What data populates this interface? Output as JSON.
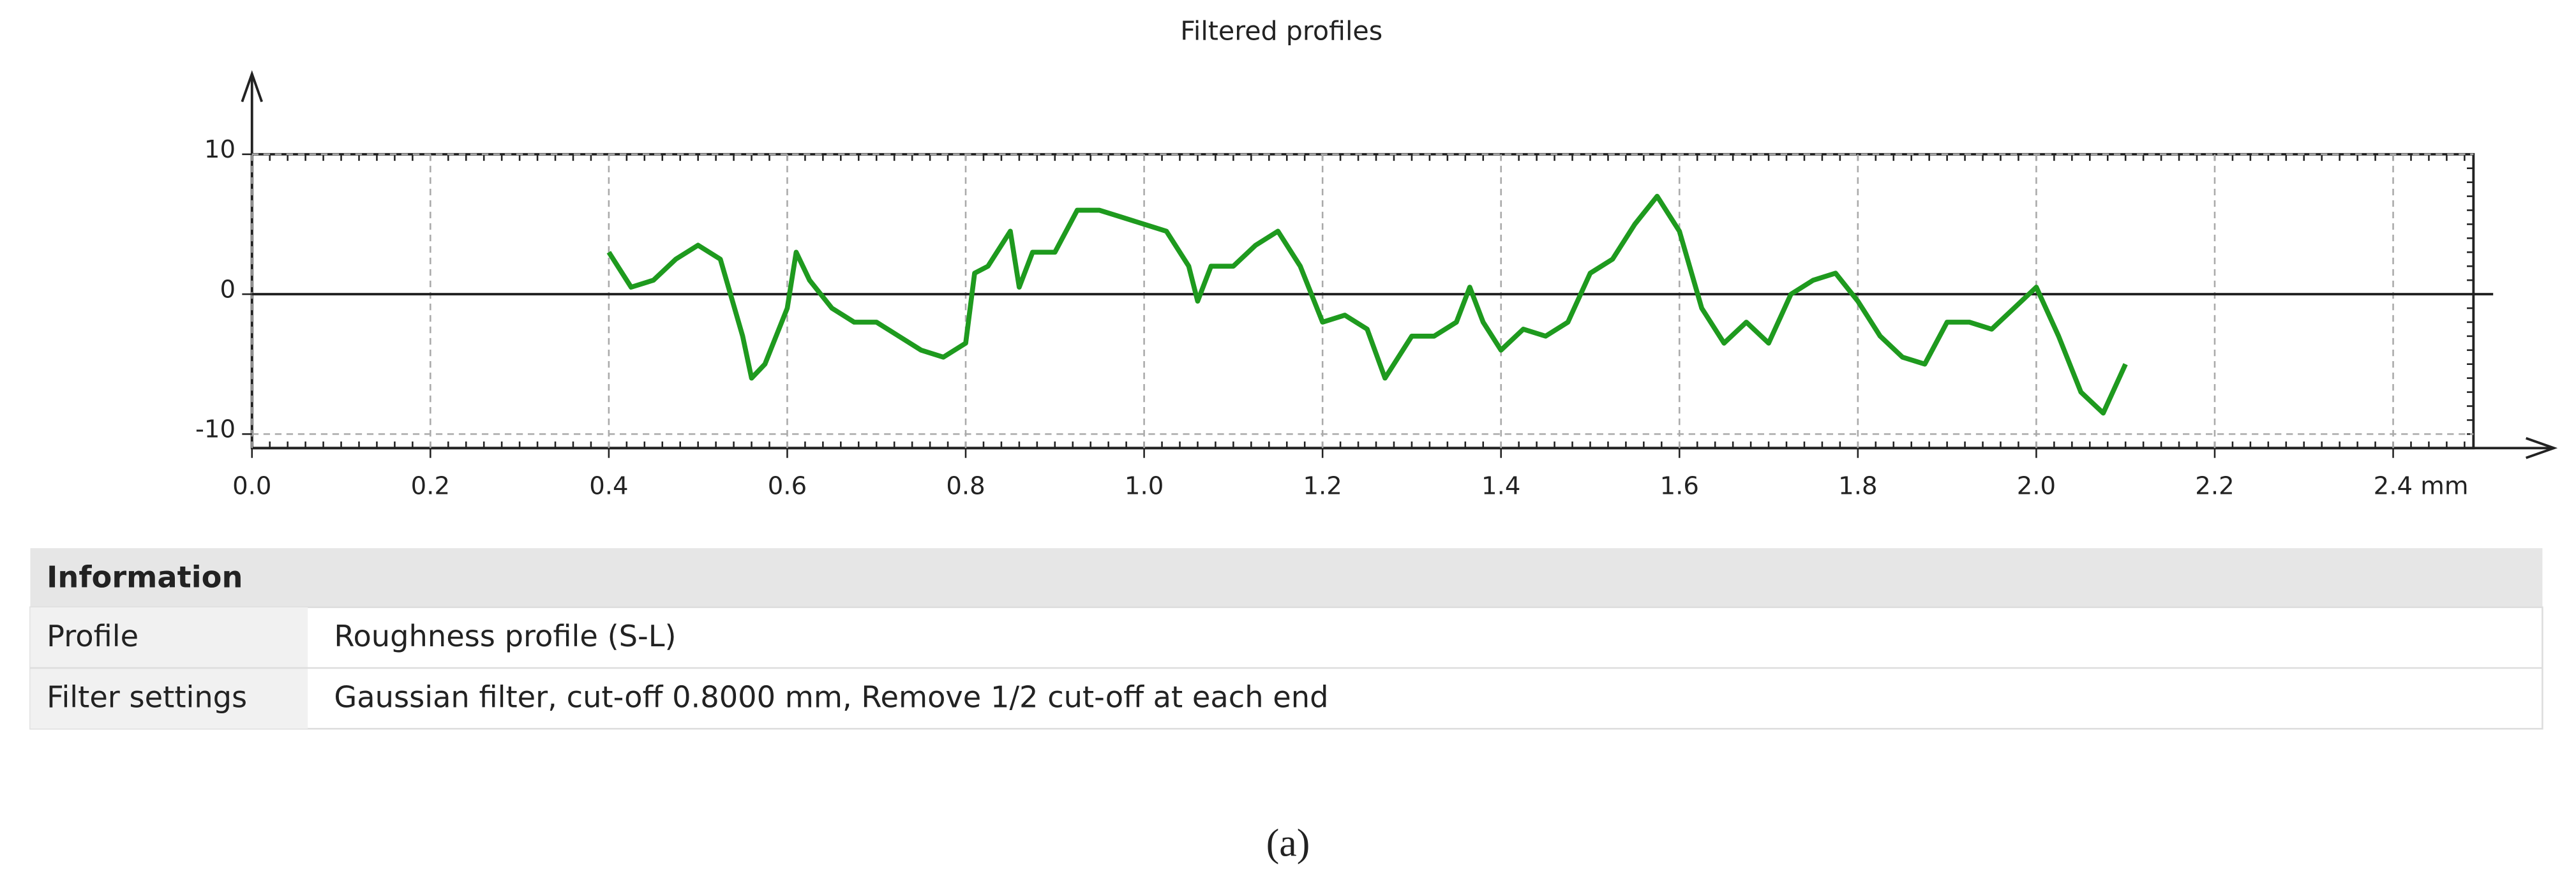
{
  "chart_data": {
    "type": "line",
    "title": "Filtered profiles",
    "x": [
      0.4,
      0.425,
      0.45,
      0.475,
      0.5,
      0.525,
      0.55,
      0.56,
      0.575,
      0.6,
      0.61,
      0.625,
      0.65,
      0.675,
      0.7,
      0.725,
      0.75,
      0.775,
      0.8,
      0.81,
      0.825,
      0.85,
      0.86,
      0.875,
      0.9,
      0.925,
      0.95,
      0.975,
      1.0,
      1.025,
      1.05,
      1.06,
      1.075,
      1.1,
      1.125,
      1.15,
      1.175,
      1.2,
      1.225,
      1.25,
      1.27,
      1.3,
      1.325,
      1.35,
      1.365,
      1.38,
      1.4,
      1.425,
      1.45,
      1.475,
      1.5,
      1.525,
      1.55,
      1.575,
      1.6,
      1.625,
      1.65,
      1.675,
      1.7,
      1.725,
      1.75,
      1.775,
      1.8,
      1.825,
      1.85,
      1.875,
      1.9,
      1.925,
      1.95,
      1.975,
      2.0,
      2.025,
      2.05,
      2.075,
      2.1
    ],
    "series": [
      {
        "color": "#1e9a1e",
        "values": [
          3,
          0.5,
          1,
          2.5,
          3.5,
          2.5,
          -3,
          -6,
          -5,
          -1,
          3,
          1,
          -1,
          -2,
          -2,
          -3,
          -4,
          -4.5,
          -3.5,
          1.5,
          2,
          4.5,
          0.5,
          3,
          3,
          6,
          6,
          5.5,
          5,
          4.5,
          2,
          -0.5,
          2,
          2,
          3.5,
          4.5,
          2,
          -2,
          -1.5,
          -2.5,
          -6,
          -3,
          -3,
          -2,
          0.5,
          -2,
          -4,
          -2.5,
          -3,
          -2,
          1.5,
          2.5,
          5,
          7,
          4.5,
          -1,
          -3.5,
          -2,
          -3.5,
          0,
          1,
          1.5,
          -0.5,
          -3,
          -4.5,
          -5,
          -2,
          -2,
          -2.5,
          -1,
          0.5,
          -3,
          -7,
          -8.5,
          -5
        ]
      }
    ],
    "xlim": [
      0,
      2.49
    ],
    "ylim": [
      -11,
      10
    ],
    "xticks": [
      {
        "value": 0,
        "label": "0.0"
      },
      0.2,
      0.4,
      0.6,
      0.8,
      {
        "value": 1,
        "label": "1.0"
      },
      1.2,
      1.4,
      1.6,
      1.8,
      {
        "value": 2,
        "label": "2.0"
      },
      2.2,
      {
        "value": 2.4,
        "label": "2.4 mm"
      }
    ],
    "yticks": [
      -10,
      0,
      10
    ],
    "grid": true
  },
  "table": {
    "header": "Information",
    "rows": [
      [
        "Profile",
        "Roughness profile (S-L)"
      ],
      [
        "Filter settings",
        "Gaussian filter, cut-off 0.8000 mm, Remove 1/2 cut-off at each end"
      ]
    ]
  },
  "caption": "(a)"
}
